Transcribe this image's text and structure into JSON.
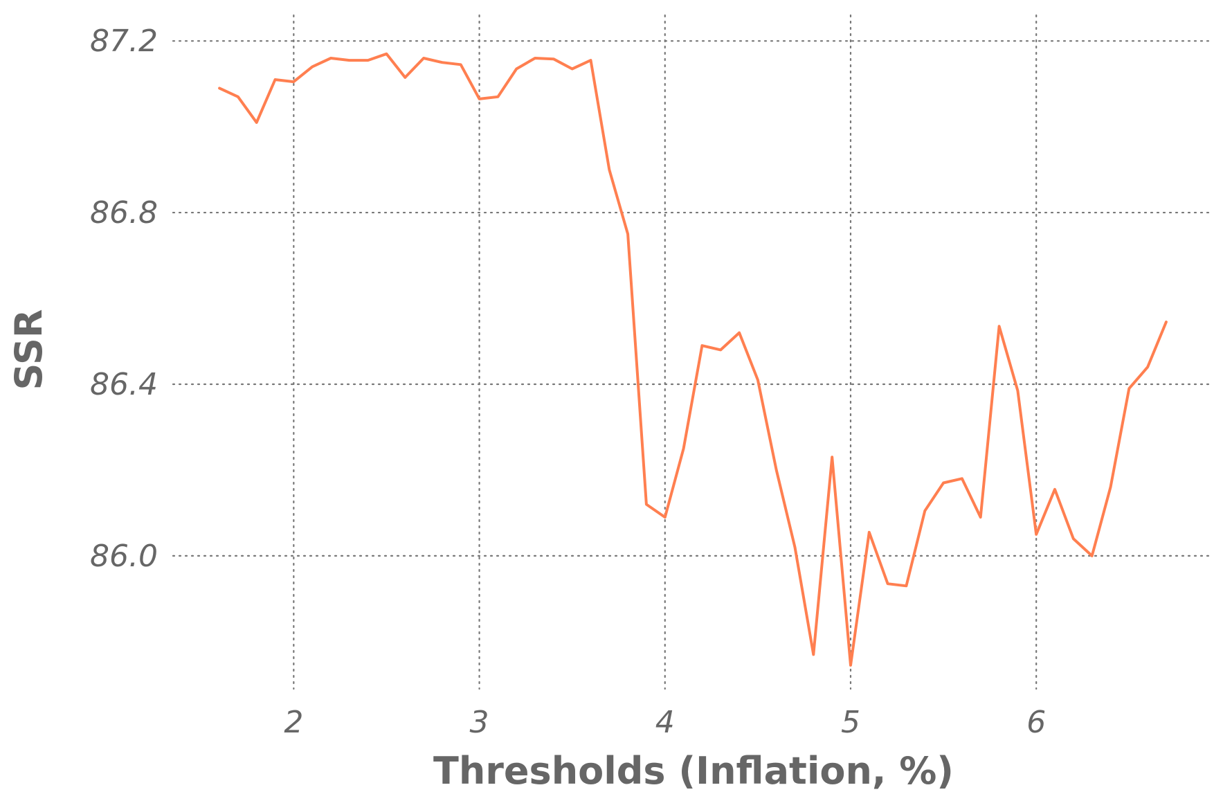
{
  "chart_data": {
    "type": "line",
    "xlabel": "Thresholds (Inflation, %)",
    "ylabel": "SSR",
    "xlim": [
      1.35,
      6.95
    ],
    "ylim": [
      85.69,
      87.26
    ],
    "x_ticks": [
      2,
      3,
      4,
      5,
      6
    ],
    "y_ticks": [
      86.0,
      86.4,
      86.8,
      87.2
    ],
    "y_tick_labels": [
      "86.0",
      "86.4",
      "86.8",
      "87.2"
    ],
    "x_tick_labels": [
      "2",
      "3",
      "4",
      "5",
      "6"
    ],
    "grid": true,
    "line_color": "#ff7f50",
    "series": [
      {
        "x": [
          1.6,
          1.7,
          1.8,
          1.9,
          2.0,
          2.1,
          2.2,
          2.3,
          2.4,
          2.5,
          2.6,
          2.7,
          2.8,
          2.9,
          3.0,
          3.1,
          3.2,
          3.3,
          3.4,
          3.5,
          3.6,
          3.7,
          3.8,
          3.9,
          4.0,
          4.1,
          4.2,
          4.3,
          4.4,
          4.5,
          4.6,
          4.7,
          4.8,
          4.9,
          5.0,
          5.1,
          5.2,
          5.3,
          5.4,
          5.5,
          5.6,
          5.7,
          5.8,
          5.9,
          6.0,
          6.1,
          6.2,
          6.3,
          6.4,
          6.5,
          6.6,
          6.7
        ],
        "values": [
          87.09,
          87.07,
          87.01,
          87.11,
          87.105,
          87.14,
          87.16,
          87.155,
          87.155,
          87.17,
          87.115,
          87.16,
          87.15,
          87.145,
          87.065,
          87.07,
          87.135,
          87.16,
          87.158,
          87.135,
          87.155,
          86.9,
          86.75,
          86.12,
          86.09,
          86.25,
          86.49,
          86.48,
          86.52,
          86.41,
          86.2,
          86.02,
          85.77,
          86.23,
          85.745,
          86.055,
          85.935,
          85.93,
          86.105,
          86.17,
          86.18,
          86.09,
          86.535,
          86.385,
          86.05,
          86.155,
          86.04,
          86.0,
          86.16,
          86.39,
          86.44,
          86.545
        ]
      }
    ]
  }
}
